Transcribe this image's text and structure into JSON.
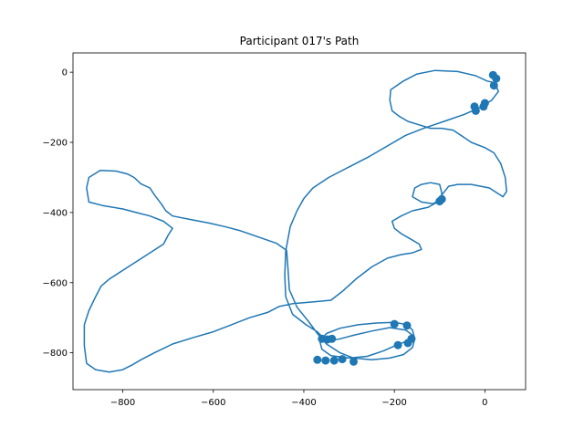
{
  "chart_data": {
    "type": "line",
    "title": "Participant 017's Path",
    "xlabel": "",
    "ylabel": "",
    "xlim": [
      -910,
      90
    ],
    "ylim": [
      -905,
      55
    ],
    "xticks": [
      -800,
      -600,
      -400,
      -200,
      0
    ],
    "yticks": [
      0,
      -200,
      -400,
      -600,
      -800
    ],
    "xtick_labels": [
      "−800",
      "−600",
      "−400",
      "−200",
      "0"
    ],
    "ytick_labels": [
      "0",
      "−200",
      "−400",
      "−600",
      "−800"
    ],
    "grid": false,
    "color": "#1f77b4",
    "series": [
      {
        "values": [
          [
            -320,
            -760
          ],
          [
            -340,
            -765
          ],
          [
            -355,
            -760
          ],
          [
            -370,
            -740
          ],
          [
            -395,
            -720
          ],
          [
            -425,
            -690
          ],
          [
            -440,
            -640
          ],
          [
            -442,
            -580
          ],
          [
            -440,
            -510
          ],
          [
            -430,
            -440
          ],
          [
            -415,
            -395
          ],
          [
            -400,
            -360
          ],
          [
            -380,
            -330
          ],
          [
            -345,
            -300
          ],
          [
            -300,
            -270
          ],
          [
            -255,
            -240
          ],
          [
            -215,
            -210
          ],
          [
            -175,
            -180
          ],
          [
            -135,
            -160
          ],
          [
            -90,
            -140
          ],
          [
            -45,
            -120
          ],
          [
            -10,
            -100
          ],
          [
            15,
            -80
          ],
          [
            30,
            -55
          ],
          [
            22,
            -30
          ],
          [
            5,
            -25
          ],
          [
            -20,
            -10
          ],
          [
            -60,
            2
          ],
          [
            -110,
            5
          ],
          [
            -150,
            -5
          ],
          [
            -180,
            -25
          ],
          [
            -208,
            -50
          ],
          [
            -210,
            -80
          ],
          [
            -205,
            -110
          ],
          [
            -190,
            -125
          ],
          [
            -170,
            -140
          ],
          [
            -145,
            -150
          ],
          [
            -120,
            -160
          ],
          [
            -95,
            -160
          ],
          [
            -70,
            -165
          ],
          [
            -30,
            -200
          ],
          [
            0,
            -215
          ],
          [
            20,
            -230
          ],
          [
            35,
            -260
          ],
          [
            45,
            -300
          ],
          [
            48,
            -340
          ],
          [
            40,
            -355
          ],
          [
            10,
            -330
          ],
          [
            -30,
            -320
          ],
          [
            -60,
            -320
          ],
          [
            -80,
            -325
          ],
          [
            -95,
            -350
          ],
          [
            -100,
            -365
          ],
          [
            -115,
            -375
          ],
          [
            -140,
            -370
          ],
          [
            -160,
            -355
          ],
          [
            -155,
            -330
          ],
          [
            -140,
            -320
          ],
          [
            -120,
            -315
          ],
          [
            -100,
            -320
          ],
          [
            -95,
            -345
          ],
          [
            -98,
            -365
          ],
          [
            -125,
            -385
          ],
          [
            -160,
            -395
          ],
          [
            -185,
            -410
          ],
          [
            -205,
            -425
          ],
          [
            -200,
            -445
          ],
          [
            -185,
            -460
          ],
          [
            -165,
            -475
          ],
          [
            -145,
            -490
          ],
          [
            -140,
            -505
          ],
          [
            -160,
            -515
          ],
          [
            -185,
            -520
          ],
          [
            -215,
            -530
          ],
          [
            -250,
            -555
          ],
          [
            -285,
            -590
          ],
          [
            -315,
            -625
          ],
          [
            -340,
            -650
          ],
          [
            -380,
            -655
          ],
          [
            -425,
            -660
          ],
          [
            -455,
            -668
          ],
          [
            -480,
            -685
          ],
          [
            -520,
            -700
          ],
          [
            -560,
            -720
          ],
          [
            -600,
            -740
          ],
          [
            -640,
            -755
          ],
          [
            -690,
            -775
          ],
          [
            -730,
            -800
          ],
          [
            -760,
            -820
          ],
          [
            -780,
            -835
          ],
          [
            -800,
            -848
          ],
          [
            -830,
            -855
          ],
          [
            -860,
            -848
          ],
          [
            -880,
            -830
          ],
          [
            -885,
            -780
          ],
          [
            -885,
            -720
          ],
          [
            -875,
            -680
          ],
          [
            -860,
            -640
          ],
          [
            -848,
            -610
          ],
          [
            -830,
            -590
          ],
          [
            -800,
            -565
          ],
          [
            -770,
            -540
          ],
          [
            -740,
            -515
          ],
          [
            -710,
            -490
          ],
          [
            -700,
            -465
          ],
          [
            -690,
            -445
          ],
          [
            -710,
            -425
          ],
          [
            -740,
            -410
          ],
          [
            -770,
            -400
          ],
          [
            -800,
            -390
          ],
          [
            -845,
            -380
          ],
          [
            -875,
            -370
          ],
          [
            -880,
            -330
          ],
          [
            -875,
            -300
          ],
          [
            -850,
            -280
          ],
          [
            -815,
            -282
          ],
          [
            -790,
            -290
          ],
          [
            -775,
            -300
          ],
          [
            -760,
            -318
          ],
          [
            -740,
            -330
          ],
          [
            -730,
            -350
          ],
          [
            -715,
            -375
          ],
          [
            -705,
            -395
          ],
          [
            -690,
            -410
          ],
          [
            -650,
            -420
          ],
          [
            -610,
            -430
          ],
          [
            -575,
            -440
          ],
          [
            -540,
            -452
          ],
          [
            -500,
            -470
          ],
          [
            -460,
            -488
          ],
          [
            -438,
            -508
          ],
          [
            -435,
            -560
          ],
          [
            -432,
            -620
          ],
          [
            -415,
            -670
          ],
          [
            -390,
            -710
          ],
          [
            -370,
            -745
          ],
          [
            -350,
            -775
          ],
          [
            -320,
            -800
          ],
          [
            -290,
            -815
          ],
          [
            -250,
            -820
          ],
          [
            -210,
            -815
          ],
          [
            -180,
            -805
          ],
          [
            -160,
            -785
          ],
          [
            -155,
            -760
          ],
          [
            -160,
            -735
          ],
          [
            -172,
            -720
          ],
          [
            -200,
            -713
          ],
          [
            -240,
            -715
          ],
          [
            -280,
            -720
          ],
          [
            -320,
            -730
          ],
          [
            -350,
            -745
          ],
          [
            -365,
            -765
          ],
          [
            -360,
            -790
          ],
          [
            -340,
            -808
          ],
          [
            -300,
            -815
          ],
          [
            -260,
            -810
          ],
          [
            -225,
            -795
          ],
          [
            -195,
            -778
          ],
          [
            -175,
            -768
          ],
          [
            -160,
            -750
          ],
          [
            -175,
            -735
          ],
          [
            -210,
            -728
          ],
          [
            -250,
            -738
          ],
          [
            -290,
            -750
          ],
          [
            -320,
            -760
          ]
        ]
      }
    ],
    "markers": [
      [
        -23,
        -98
      ],
      [
        -20,
        -110
      ],
      [
        -3,
        -98
      ],
      [
        0,
        -88
      ],
      [
        20,
        -38
      ],
      [
        25,
        -18
      ],
      [
        18,
        -8
      ],
      [
        -95,
        -362
      ],
      [
        -100,
        -368
      ],
      [
        -200,
        -718
      ],
      [
        -172,
        -722
      ],
      [
        -162,
        -760
      ],
      [
        -170,
        -772
      ],
      [
        -192,
        -778
      ],
      [
        -290,
        -825
      ],
      [
        -315,
        -818
      ],
      [
        -333,
        -822
      ],
      [
        -352,
        -822
      ],
      [
        -370,
        -820
      ],
      [
        -360,
        -760
      ],
      [
        -348,
        -762
      ],
      [
        -338,
        -760
      ]
    ]
  }
}
